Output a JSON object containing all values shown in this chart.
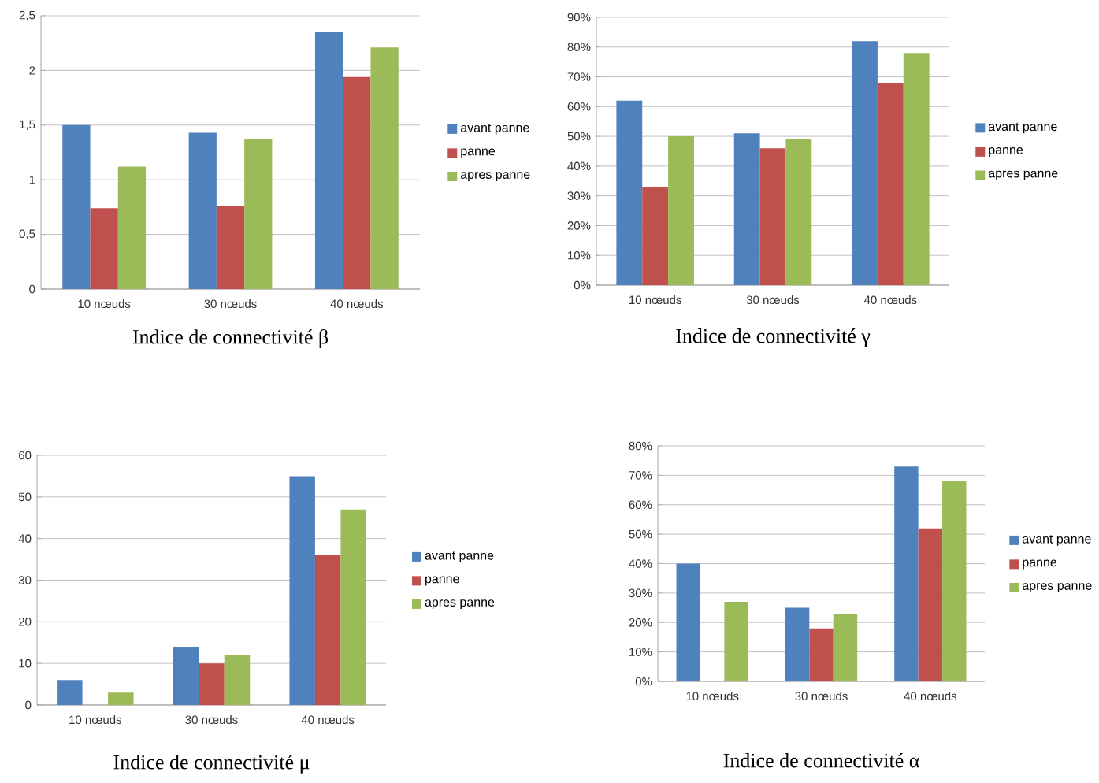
{
  "chart_data": [
    {
      "type": "bar",
      "title": "Indice de connectivité β",
      "categories": [
        "10 nœuds",
        "30 nœuds",
        "40 nœuds"
      ],
      "series": [
        {
          "name": "avant panne",
          "color": "#4f81bd",
          "values": [
            1.5,
            1.43,
            2.35
          ]
        },
        {
          "name": "panne",
          "color": "#c0504d",
          "values": [
            0.74,
            0.76,
            1.94
          ]
        },
        {
          "name": "apres panne",
          "color": "#9bbb59",
          "values": [
            1.12,
            1.37,
            2.21
          ]
        }
      ],
      "ylim": [
        0,
        2.5
      ],
      "yticks": [
        0,
        {
          "value": 0.5,
          "label": "0,5"
        },
        1,
        {
          "value": 1.5,
          "label": "1,5"
        },
        2,
        {
          "value": 2.5,
          "label": "2,5"
        }
      ],
      "grid": "y",
      "legend": "right"
    },
    {
      "type": "bar",
      "title": "Indice de connectivité γ",
      "categories": [
        "10 nœuds",
        "30 nœuds",
        "40 nœuds"
      ],
      "series": [
        {
          "name": "avant panne",
          "color": "#4f81bd",
          "values": [
            62,
            51,
            82
          ]
        },
        {
          "name": "panne",
          "color": "#c0504d",
          "values": [
            33,
            46,
            68
          ]
        },
        {
          "name": "apres panne",
          "color": "#9bbb59",
          "values": [
            50,
            49,
            78
          ]
        }
      ],
      "ylim": [
        0,
        90
      ],
      "yticks": [
        {
          "value": 0,
          "label": "0%"
        },
        {
          "value": 10,
          "label": "10%"
        },
        {
          "value": 20,
          "label": "20%"
        },
        {
          "value": 30,
          "label": "30%"
        },
        {
          "value": 40,
          "label": "40%"
        },
        {
          "value": 50,
          "label": "50%"
        },
        {
          "value": 60,
          "label": "60%"
        },
        {
          "value": 70,
          "label": "70%"
        },
        {
          "value": 80,
          "label": "80%"
        },
        {
          "value": 90,
          "label": "90%"
        }
      ],
      "grid": "y",
      "legend": "right"
    },
    {
      "type": "bar",
      "title": "Indice de connectivité μ",
      "categories": [
        "10 nœuds",
        "30 nœuds",
        "40 nœuds"
      ],
      "series": [
        {
          "name": "avant panne",
          "color": "#4f81bd",
          "values": [
            6,
            14,
            55
          ]
        },
        {
          "name": "panne",
          "color": "#c0504d",
          "values": [
            0,
            10,
            36
          ]
        },
        {
          "name": "apres panne",
          "color": "#9bbb59",
          "values": [
            3,
            12,
            47
          ]
        }
      ],
      "ylim": [
        0,
        60
      ],
      "yticks": [
        0,
        10,
        20,
        30,
        40,
        50,
        60
      ],
      "grid": "y",
      "legend": "right"
    },
    {
      "type": "bar",
      "title": "Indice de connectivité α",
      "categories": [
        "10 nœuds",
        "30 nœuds",
        "40 nœuds"
      ],
      "series": [
        {
          "name": "avant panne",
          "color": "#4f81bd",
          "values": [
            40,
            25,
            73
          ]
        },
        {
          "name": "panne",
          "color": "#c0504d",
          "values": [
            0,
            18,
            52
          ]
        },
        {
          "name": "apres panne",
          "color": "#9bbb59",
          "values": [
            27,
            23,
            68
          ]
        }
      ],
      "ylim": [
        0,
        80
      ],
      "yticks": [
        {
          "value": 0,
          "label": "0%"
        },
        {
          "value": 10,
          "label": "10%"
        },
        {
          "value": 20,
          "label": "20%"
        },
        {
          "value": 30,
          "label": "30%"
        },
        {
          "value": 40,
          "label": "40%"
        },
        {
          "value": 50,
          "label": "50%"
        },
        {
          "value": 60,
          "label": "60%"
        },
        {
          "value": 70,
          "label": "70%"
        },
        {
          "value": 80,
          "label": "80%"
        }
      ],
      "grid": "y",
      "legend": "right"
    }
  ]
}
